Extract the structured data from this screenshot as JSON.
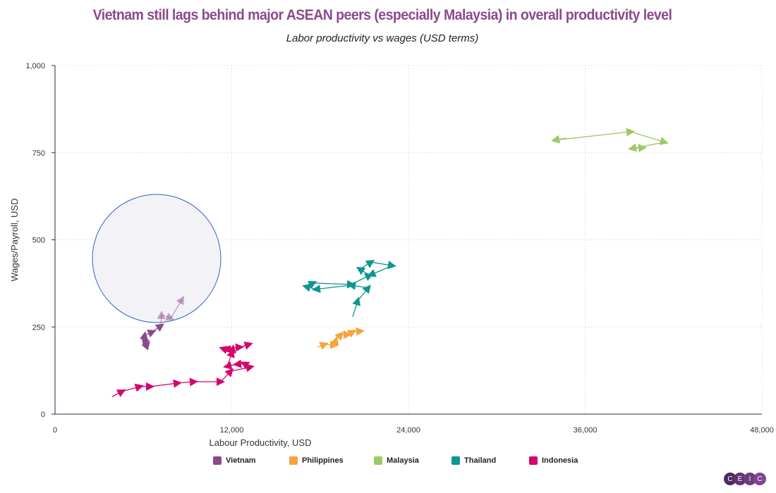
{
  "chart_data": {
    "type": "scatter",
    "title": "Vietnam still lags behind major ASEAN peers (especially Malaysia) in overall productivity level",
    "subtitle": "Labor productivity vs wages (USD terms)",
    "xlabel": "Labour Productivity, USD",
    "ylabel": "Wages/Payroll, USD",
    "xlim": [
      0,
      48000
    ],
    "ylim": [
      0,
      1000
    ],
    "xticks": [
      "0",
      "12,000",
      "24,000",
      "36,000",
      "48,000"
    ],
    "yticks": [
      "0",
      "250",
      "500",
      "750",
      "1,000"
    ],
    "grid": true,
    "legend_position": "bottom",
    "series": [
      {
        "name": "Vietnam",
        "color": "#8b4a8c",
        "points": [
          [
            6084,
            190
          ],
          [
            6275,
            200
          ],
          [
            6036,
            214
          ],
          [
            6084,
            226
          ],
          [
            6611,
            236
          ],
          [
            7186,
            253
          ],
          [
            7233,
            285
          ],
          [
            7856,
            275
          ],
          [
            8623,
            329
          ]
        ]
      },
      {
        "name": "Philippines",
        "color": "#f7a23b",
        "points": [
          [
            17820,
            192
          ],
          [
            18299,
            200
          ],
          [
            18970,
            198
          ],
          [
            19066,
            212
          ],
          [
            19401,
            228
          ],
          [
            19880,
            228
          ],
          [
            20216,
            236
          ],
          [
            20743,
            238
          ]
        ]
      },
      {
        "name": "Malaysia",
        "color": "#9dc966",
        "points": [
          [
            34730,
            792
          ],
          [
            33964,
            786
          ],
          [
            39090,
            810
          ],
          [
            41389,
            780
          ],
          [
            39186,
            762
          ],
          [
            39904,
            764
          ]
        ]
      },
      {
        "name": "Thailand",
        "color": "#0e9690",
        "points": [
          [
            20216,
            279
          ],
          [
            20551,
            325
          ],
          [
            21269,
            362
          ],
          [
            20120,
            370
          ],
          [
            17725,
            358
          ],
          [
            17054,
            366
          ],
          [
            17533,
            376
          ],
          [
            20120,
            372
          ],
          [
            21365,
            398
          ],
          [
            20695,
            416
          ],
          [
            21461,
            436
          ],
          [
            22898,
            426
          ],
          [
            21461,
            400
          ]
        ]
      },
      {
        "name": "Indonesia",
        "color": "#d6046c",
        "points": [
          [
            3870,
            50
          ],
          [
            4551,
            65
          ],
          [
            5749,
            79
          ],
          [
            6467,
            79
          ],
          [
            8335,
            89
          ],
          [
            9437,
            93
          ],
          [
            11257,
            93
          ],
          [
            11928,
            123
          ],
          [
            13269,
            135
          ],
          [
            12838,
            145
          ],
          [
            12359,
            143
          ],
          [
            11689,
            137
          ],
          [
            12024,
            176
          ],
          [
            12072,
            188
          ],
          [
            11689,
            184
          ],
          [
            11401,
            188
          ],
          [
            12551,
            192
          ],
          [
            13174,
            200
          ]
        ]
      }
    ]
  },
  "logo": "CEIC"
}
